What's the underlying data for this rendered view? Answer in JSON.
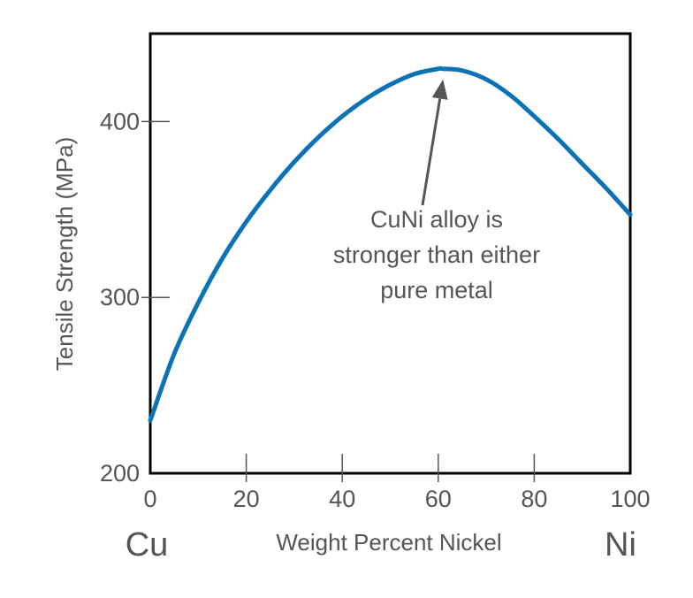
{
  "chart_data": {
    "type": "line",
    "xlabel": "Weight Percent Nickel",
    "ylabel": "Tensile Strength (MPa)",
    "xlim": [
      0,
      100
    ],
    "ylim": [
      200,
      450
    ],
    "x_ticks": [
      0,
      20,
      40,
      60,
      80,
      100
    ],
    "y_ticks": [
      200,
      300,
      400
    ],
    "x_tick_labels": [
      "0",
      "20",
      "40",
      "60",
      "80",
      "100"
    ],
    "y_tick_labels": [
      "200",
      "300",
      "400"
    ],
    "left_end_label": "Cu",
    "right_end_label": "Ni",
    "grid": false,
    "series": [
      {
        "color": "#0b72b5",
        "x": [
          0,
          5,
          10,
          15,
          20,
          25,
          30,
          35,
          40,
          45,
          50,
          55,
          60,
          61,
          65,
          70,
          75,
          80,
          85,
          90,
          95,
          100
        ],
        "y": [
          230,
          268,
          297,
          322,
          343,
          361,
          377,
          391,
          403,
          413,
          421,
          427,
          430,
          430,
          429,
          424,
          415,
          403,
          390,
          376,
          362,
          347
        ]
      }
    ],
    "annotation": {
      "lines": [
        "CuNi alloy is",
        "stronger than either",
        "pure metal"
      ],
      "points_to": {
        "x": 61,
        "y": 430
      }
    }
  }
}
